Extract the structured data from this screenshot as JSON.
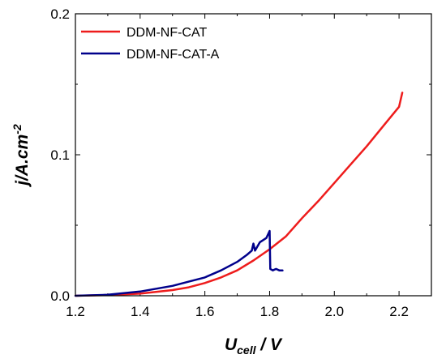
{
  "chart_data": {
    "type": "line",
    "title": "",
    "xlabel": {
      "main": "U",
      "sub": "cell",
      "rest": " / V"
    },
    "ylabel": {
      "main": "j/A.cm",
      "sup": "-2"
    },
    "xlim": [
      1.2,
      2.3
    ],
    "ylim": [
      0,
      0.2
    ],
    "x_ticks": [
      {
        "value": 1.2,
        "label": "1.2"
      },
      {
        "value": 1.4,
        "label": "1.4"
      },
      {
        "value": 1.6,
        "label": "1.6"
      },
      {
        "value": 1.8,
        "label": "1.8"
      },
      {
        "value": 2.0,
        "label": "2.0"
      },
      {
        "value": 2.2,
        "label": "2.2"
      }
    ],
    "y_ticks": [
      {
        "value": 0.0,
        "label": "0.0"
      },
      {
        "value": 0.1,
        "label": "0.1"
      },
      {
        "value": 0.2,
        "label": "0.2"
      }
    ],
    "grid": false,
    "legend": "top-left",
    "series": [
      {
        "name": "DDM-NF-CAT",
        "color": "#ee1c1c",
        "x": [
          1.2,
          1.3,
          1.4,
          1.5,
          1.55,
          1.6,
          1.65,
          1.7,
          1.75,
          1.8,
          1.85,
          1.9,
          1.95,
          2.0,
          2.05,
          2.1,
          2.15,
          2.2,
          2.21
        ],
        "y": [
          0.0,
          0.0005,
          0.0015,
          0.004,
          0.006,
          0.009,
          0.013,
          0.018,
          0.025,
          0.033,
          0.042,
          0.055,
          0.067,
          0.08,
          0.093,
          0.106,
          0.12,
          0.134,
          0.144
        ]
      },
      {
        "name": "DDM-NF-CAT-A",
        "color": "#00008b",
        "x": [
          1.2,
          1.3,
          1.4,
          1.5,
          1.55,
          1.6,
          1.65,
          1.7,
          1.73,
          1.745,
          1.75,
          1.755,
          1.77,
          1.79,
          1.8,
          1.802,
          1.81,
          1.82,
          1.83,
          1.84
        ],
        "y": [
          0.0,
          0.0007,
          0.003,
          0.007,
          0.01,
          0.013,
          0.018,
          0.024,
          0.029,
          0.032,
          0.037,
          0.032,
          0.038,
          0.041,
          0.046,
          0.019,
          0.018,
          0.019,
          0.018,
          0.018
        ]
      }
    ]
  }
}
